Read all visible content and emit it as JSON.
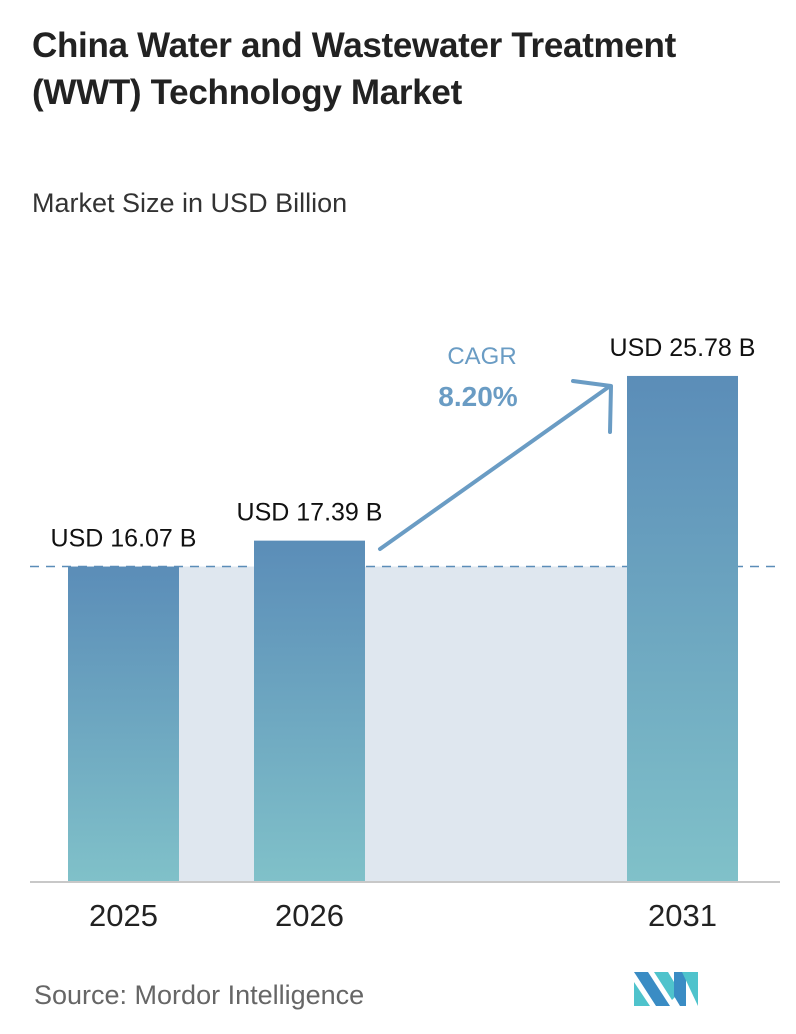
{
  "title": "China Water and Wastewater Treatment (WWT) Technology Market",
  "subtitle": "Market Size in USD Billion",
  "source": "Source:  Mordor Intelligence",
  "logo_text": "Mordor Intelligence",
  "colors": {
    "bar_top": "#5b8db8",
    "bar_bottom": "#7fc0c8",
    "band": "#dfe7ef",
    "accent": "#6a9cc4",
    "text": "#111111"
  },
  "chart_data": {
    "type": "bar",
    "categories": [
      "2025",
      "2026",
      "2031"
    ],
    "values": [
      16.07,
      17.39,
      25.78
    ],
    "data_labels": [
      "USD 16.07 B",
      "USD 17.39 B",
      "USD 25.78 B"
    ],
    "ylim": [
      0,
      26
    ],
    "grid": false,
    "annotation": {
      "label": "CAGR",
      "value": "8.20%"
    }
  }
}
